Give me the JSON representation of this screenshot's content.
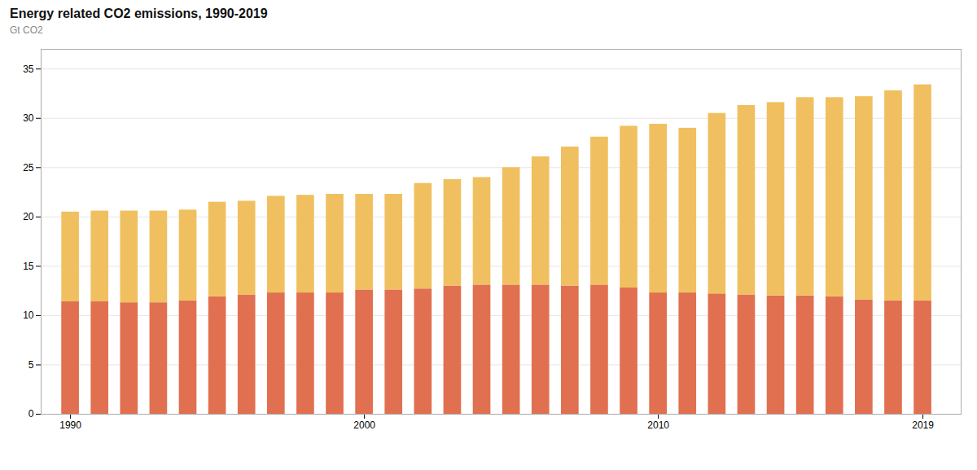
{
  "chart_data": {
    "type": "bar",
    "title": "Energy related CO2 emissions, 1990-2019",
    "ylabel": "Gt CO2",
    "stacked": true,
    "x": [
      1990,
      1991,
      1992,
      1993,
      1994,
      1995,
      1996,
      1997,
      1998,
      1999,
      2000,
      2001,
      2002,
      2003,
      2004,
      2005,
      2006,
      2007,
      2008,
      2009,
      2010,
      2011,
      2012,
      2013,
      2014,
      2015,
      2016,
      2017,
      2018,
      2019
    ],
    "series": [
      {
        "color": "#E07050",
        "values": [
          11.4,
          11.4,
          11.3,
          11.3,
          11.5,
          11.9,
          12.1,
          12.3,
          12.3,
          12.3,
          12.6,
          12.6,
          12.7,
          13.0,
          13.1,
          13.1,
          13.1,
          13.0,
          13.1,
          12.8,
          12.3,
          12.3,
          12.2,
          12.1,
          12.0,
          12.0,
          11.9,
          11.6,
          11.5,
          11.5
        ]
      },
      {
        "color": "#F0C060",
        "values": [
          9.1,
          9.2,
          9.3,
          9.3,
          9.2,
          9.6,
          9.5,
          9.8,
          9.9,
          10.0,
          9.7,
          9.7,
          10.7,
          10.8,
          10.9,
          11.9,
          13.0,
          14.1,
          15.0,
          16.4,
          17.1,
          16.7,
          18.3,
          19.2,
          19.6,
          20.1,
          20.2,
          20.6,
          21.3,
          21.9
        ]
      }
    ],
    "xlim": [
      1989.0,
      2020.3
    ],
    "xticks": [
      1990,
      2000,
      2010,
      2019
    ],
    "ylim": [
      0,
      37
    ],
    "yticks": [
      0,
      5,
      10,
      15,
      20,
      25,
      30,
      35
    ],
    "grid": true
  }
}
